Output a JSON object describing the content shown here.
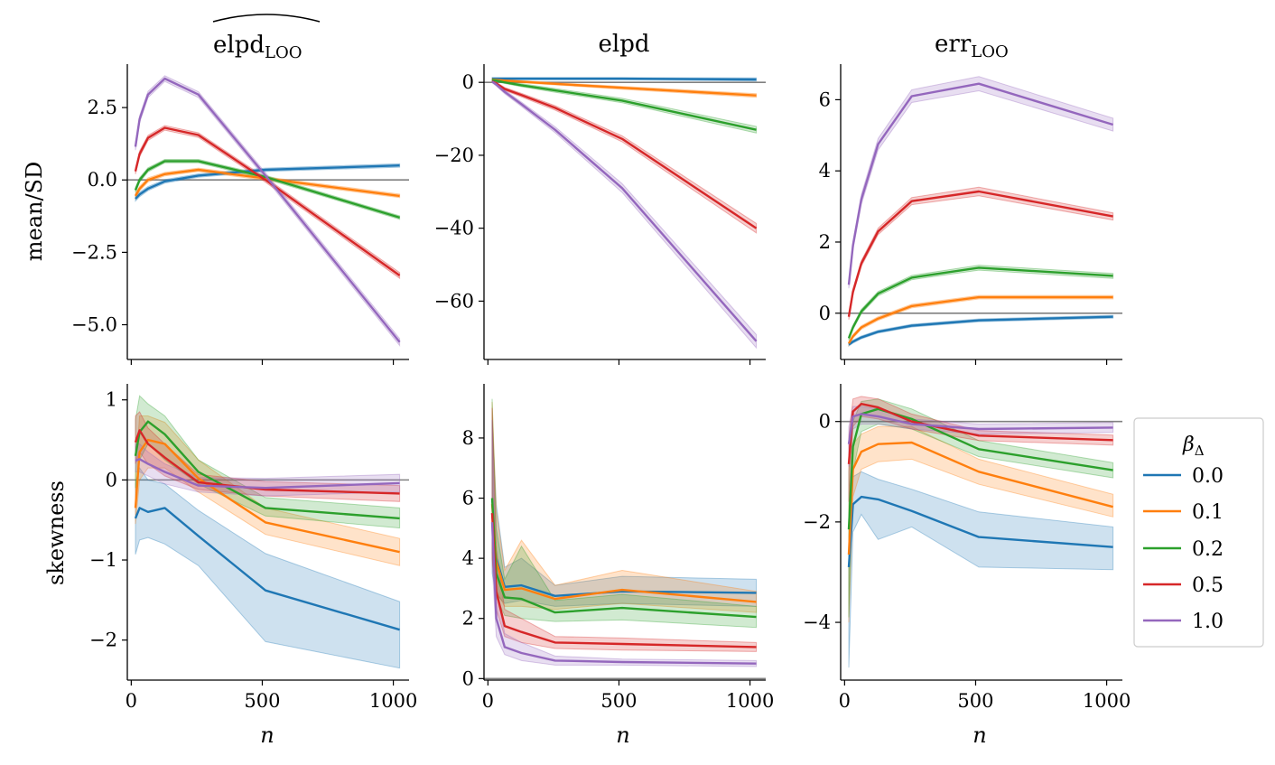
{
  "figure": {
    "row_labels": [
      "mean/SD",
      "skewness"
    ],
    "x_label": "n",
    "panel_titles": [
      {
        "main": "elpd",
        "sub": "LOO",
        "hat": true
      },
      {
        "main": "elpd",
        "sub": "",
        "hat": false
      },
      {
        "main": "err",
        "sub": "LOO",
        "hat": false
      }
    ]
  },
  "legend": {
    "title": "β",
    "title_sub": "Δ",
    "entries": [
      {
        "label": "0.0",
        "color": "#1f77b4"
      },
      {
        "label": "0.1",
        "color": "#ff7f0e"
      },
      {
        "label": "0.2",
        "color": "#2ca02c"
      },
      {
        "label": "0.5",
        "color": "#d62728"
      },
      {
        "label": "1.0",
        "color": "#9467bd"
      }
    ]
  },
  "chart_data": [
    {
      "type": "line",
      "title": "elpd_LOO (hat)",
      "ylabel": "mean/SD",
      "xlabel": "",
      "xlim": [
        -15,
        1060
      ],
      "ylim": [
        -6.2,
        4.0
      ],
      "xticks": [
        0,
        500,
        1000
      ],
      "xticklabels": [
        "",
        "",
        ""
      ],
      "yticks": [
        2.5,
        0.0,
        -2.5,
        -5.0
      ],
      "yticklabels": [
        "2.5",
        "0.0",
        "−2.5",
        "−5.0"
      ],
      "hline": 0,
      "x": [
        16,
        32,
        64,
        128,
        256,
        512,
        1024
      ],
      "series": [
        {
          "name": "0.0",
          "values": [
            -0.65,
            -0.5,
            -0.3,
            -0.05,
            0.15,
            0.35,
            0.5
          ],
          "band": [
            0.08,
            0.08,
            0.07,
            0.06,
            0.06,
            0.06,
            0.06
          ]
        },
        {
          "name": "0.1",
          "values": [
            -0.55,
            -0.3,
            0.0,
            0.2,
            0.35,
            0.05,
            -0.55
          ],
          "band": [
            0.08,
            0.08,
            0.07,
            0.06,
            0.06,
            0.06,
            0.06
          ]
        },
        {
          "name": "0.2",
          "values": [
            -0.35,
            0.0,
            0.35,
            0.65,
            0.65,
            0.1,
            -1.3
          ],
          "band": [
            0.08,
            0.08,
            0.07,
            0.06,
            0.06,
            0.06,
            0.06
          ]
        },
        {
          "name": "0.5",
          "values": [
            0.3,
            0.9,
            1.45,
            1.8,
            1.55,
            0.0,
            -3.3
          ],
          "band": [
            0.1,
            0.1,
            0.09,
            0.08,
            0.08,
            0.08,
            0.1
          ]
        },
        {
          "name": "1.0",
          "values": [
            1.15,
            2.1,
            2.95,
            3.5,
            2.95,
            0.15,
            -5.6
          ],
          "band": [
            0.12,
            0.12,
            0.11,
            0.1,
            0.1,
            0.1,
            0.12
          ]
        }
      ]
    },
    {
      "type": "line",
      "title": "elpd",
      "ylabel": "",
      "xlabel": "",
      "xlim": [
        -15,
        1060
      ],
      "ylim": [
        -76,
        5
      ],
      "xticks": [
        0,
        500,
        1000
      ],
      "xticklabels": [
        "",
        "",
        ""
      ],
      "yticks": [
        0,
        -20,
        -40,
        -60
      ],
      "yticklabels": [
        "0",
        "−20",
        "−40",
        "−60"
      ],
      "hline": 0,
      "x": [
        16,
        32,
        64,
        128,
        256,
        512,
        1024
      ],
      "series": [
        {
          "name": "0.0",
          "values": [
            1.0,
            1.0,
            1.0,
            1.0,
            1.0,
            1.0,
            0.8
          ],
          "band": [
            0.3,
            0.3,
            0.3,
            0.3,
            0.3,
            0.3,
            0.4
          ]
        },
        {
          "name": "0.1",
          "values": [
            0.8,
            0.7,
            0.5,
            0.2,
            -0.4,
            -1.5,
            -3.6
          ],
          "band": [
            0.3,
            0.3,
            0.3,
            0.3,
            0.3,
            0.4,
            0.5
          ]
        },
        {
          "name": "0.2",
          "values": [
            0.7,
            0.5,
            0.0,
            -0.8,
            -2.2,
            -5.0,
            -13.0
          ],
          "band": [
            0.3,
            0.3,
            0.3,
            0.4,
            0.5,
            0.6,
            0.9
          ]
        },
        {
          "name": "0.5",
          "values": [
            0.3,
            -0.3,
            -1.8,
            -3.5,
            -7.0,
            -15.5,
            -40.0
          ],
          "band": [
            0.3,
            0.3,
            0.4,
            0.5,
            0.6,
            0.8,
            1.3
          ]
        },
        {
          "name": "1.0",
          "values": [
            0.2,
            -0.6,
            -2.6,
            -6.0,
            -13.0,
            -29.0,
            -71.0
          ],
          "band": [
            0.3,
            0.4,
            0.5,
            0.6,
            0.8,
            1.2,
            1.8
          ]
        }
      ]
    },
    {
      "type": "line",
      "title": "err_LOO",
      "ylabel": "",
      "xlabel": "",
      "xlim": [
        -15,
        1060
      ],
      "ylim": [
        -1.3,
        7.0
      ],
      "xticks": [
        0,
        500,
        1000
      ],
      "xticklabels": [
        "",
        "",
        ""
      ],
      "yticks": [
        6,
        4,
        2,
        0
      ],
      "yticklabels": [
        "6",
        "4",
        "2",
        "0"
      ],
      "hline": 0,
      "x": [
        16,
        32,
        64,
        128,
        256,
        512,
        1024
      ],
      "series": [
        {
          "name": "0.0",
          "values": [
            -0.88,
            -0.8,
            -0.68,
            -0.52,
            -0.35,
            -0.2,
            -0.1
          ],
          "band": [
            0.04,
            0.04,
            0.04,
            0.04,
            0.04,
            0.04,
            0.04
          ]
        },
        {
          "name": "0.1",
          "values": [
            -0.85,
            -0.65,
            -0.4,
            -0.15,
            0.2,
            0.45,
            0.45
          ],
          "band": [
            0.05,
            0.05,
            0.05,
            0.05,
            0.05,
            0.05,
            0.05
          ]
        },
        {
          "name": "0.2",
          "values": [
            -0.7,
            -0.4,
            0.05,
            0.55,
            1.0,
            1.28,
            1.05
          ],
          "band": [
            0.06,
            0.06,
            0.06,
            0.06,
            0.06,
            0.07,
            0.07
          ]
        },
        {
          "name": "0.5",
          "values": [
            -0.1,
            0.6,
            1.4,
            2.3,
            3.15,
            3.42,
            2.72
          ],
          "band": [
            0.08,
            0.08,
            0.08,
            0.09,
            0.1,
            0.12,
            0.1
          ]
        },
        {
          "name": "1.0",
          "values": [
            0.8,
            1.9,
            3.2,
            4.75,
            6.1,
            6.45,
            5.3
          ],
          "band": [
            0.1,
            0.12,
            0.14,
            0.16,
            0.18,
            0.2,
            0.18
          ]
        }
      ]
    },
    {
      "type": "line",
      "title": "",
      "ylabel": "skewness",
      "xlabel": "n",
      "xlim": [
        -15,
        1060
      ],
      "ylim": [
        -2.5,
        1.2
      ],
      "xticks": [
        0,
        500,
        1000
      ],
      "xticklabels": [
        "0",
        "500",
        "1000"
      ],
      "yticks": [
        1,
        0,
        -1,
        -2
      ],
      "yticklabels": [
        "1",
        "0",
        "−1",
        "−2"
      ],
      "hline": 0,
      "x": [
        16,
        32,
        64,
        128,
        256,
        512,
        1024
      ],
      "series": [
        {
          "name": "0.0",
          "values": [
            -0.48,
            -0.35,
            -0.4,
            -0.35,
            -0.7,
            -1.38,
            -1.87
          ],
          "lower": [
            -0.93,
            -0.75,
            -0.72,
            -0.8,
            -1.07,
            -2.02,
            -2.35
          ],
          "upper": [
            -0.05,
            0.15,
            0.0,
            -0.05,
            -0.38,
            -0.92,
            -1.52
          ]
        },
        {
          "name": "0.1",
          "values": [
            -0.35,
            0.35,
            0.5,
            0.45,
            0.02,
            -0.53,
            -0.9
          ],
          "lower": [
            -0.55,
            0.0,
            0.15,
            0.15,
            -0.15,
            -0.68,
            -1.07
          ],
          "upper": [
            0.05,
            0.8,
            0.8,
            0.72,
            0.25,
            -0.35,
            -0.73
          ]
        },
        {
          "name": "0.2",
          "values": [
            0.3,
            0.6,
            0.73,
            0.57,
            0.1,
            -0.35,
            -0.48
          ],
          "lower": [
            -0.1,
            0.25,
            0.45,
            0.25,
            -0.05,
            -0.45,
            -0.6
          ],
          "upper": [
            0.75,
            1.05,
            0.95,
            0.8,
            0.25,
            -0.22,
            -0.35
          ]
        },
        {
          "name": "0.5",
          "values": [
            0.47,
            0.62,
            0.45,
            0.28,
            -0.03,
            -0.12,
            -0.17
          ],
          "lower": [
            0.2,
            0.35,
            0.2,
            0.05,
            -0.12,
            -0.2,
            -0.27
          ],
          "upper": [
            0.8,
            0.85,
            0.65,
            0.45,
            0.07,
            -0.02,
            -0.07
          ]
        },
        {
          "name": "1.0",
          "values": [
            0.24,
            0.26,
            0.2,
            0.1,
            -0.07,
            -0.1,
            -0.04
          ],
          "lower": [
            0.1,
            0.1,
            0.05,
            -0.05,
            -0.15,
            -0.2,
            -0.15
          ],
          "upper": [
            0.45,
            0.45,
            0.35,
            0.2,
            0.03,
            0.02,
            0.07
          ]
        }
      ]
    },
    {
      "type": "line",
      "title": "",
      "ylabel": "",
      "xlabel": "n",
      "xlim": [
        -15,
        1060
      ],
      "ylim": [
        -0.05,
        9.8
      ],
      "xticks": [
        0,
        500,
        1000
      ],
      "xticklabels": [
        "0",
        "500",
        "1000"
      ],
      "yticks": [
        8,
        6,
        4,
        2,
        0
      ],
      "yticklabels": [
        "8",
        "6",
        "4",
        "2",
        "0"
      ],
      "hline": 0,
      "x": [
        16,
        32,
        64,
        128,
        256,
        512,
        1024
      ],
      "series": [
        {
          "name": "0.0",
          "values": [
            5.5,
            4.0,
            3.05,
            3.1,
            2.75,
            2.9,
            2.85
          ],
          "lower": [
            3.5,
            2.8,
            2.5,
            2.6,
            2.4,
            2.5,
            2.4
          ],
          "upper": [
            8.6,
            5.8,
            3.7,
            4.0,
            3.1,
            3.4,
            3.3
          ]
        },
        {
          "name": "0.1",
          "values": [
            5.8,
            3.9,
            2.95,
            3.0,
            2.65,
            2.95,
            2.55
          ],
          "lower": [
            4.0,
            2.9,
            2.4,
            2.4,
            2.3,
            2.5,
            2.2
          ],
          "upper": [
            9.2,
            5.6,
            3.6,
            4.6,
            3.1,
            3.6,
            2.9
          ]
        },
        {
          "name": "0.2",
          "values": [
            6.0,
            3.5,
            2.7,
            2.65,
            2.2,
            2.35,
            2.05
          ],
          "lower": [
            4.2,
            2.7,
            2.1,
            2.0,
            1.9,
            1.95,
            1.7
          ],
          "upper": [
            9.3,
            5.0,
            3.3,
            4.4,
            2.6,
            2.8,
            2.4
          ]
        },
        {
          "name": "0.5",
          "values": [
            5.5,
            2.9,
            1.75,
            1.55,
            1.2,
            1.15,
            1.05
          ],
          "lower": [
            4.0,
            2.3,
            1.4,
            1.2,
            1.0,
            0.95,
            0.9
          ],
          "upper": [
            9.0,
            4.3,
            2.3,
            2.0,
            1.4,
            1.35,
            1.2
          ]
        },
        {
          "name": "1.0",
          "values": [
            5.2,
            2.0,
            1.05,
            0.85,
            0.6,
            0.55,
            0.5
          ],
          "lower": [
            3.8,
            1.4,
            0.8,
            0.6,
            0.45,
            0.45,
            0.4
          ],
          "upper": [
            8.6,
            3.0,
            1.5,
            1.2,
            0.75,
            0.65,
            0.6
          ]
        }
      ]
    },
    {
      "type": "line",
      "title": "",
      "ylabel": "",
      "xlabel": "n",
      "xlim": [
        -15,
        1060
      ],
      "ylim": [
        -5.15,
        0.75
      ],
      "xticks": [
        0,
        500,
        1000
      ],
      "xticklabels": [
        "0",
        "500",
        "1000"
      ],
      "yticks": [
        0,
        -2,
        -4
      ],
      "yticklabels": [
        "0",
        "−2",
        "−4"
      ],
      "hline": 0,
      "x": [
        16,
        32,
        64,
        128,
        256,
        512,
        1024
      ],
      "series": [
        {
          "name": "0.0",
          "values": [
            -2.9,
            -1.65,
            -1.5,
            -1.55,
            -1.78,
            -2.3,
            -2.5
          ],
          "lower": [
            -4.9,
            -2.2,
            -1.85,
            -2.35,
            -2.1,
            -2.9,
            -2.95
          ],
          "upper": [
            -2.3,
            -1.1,
            -1.0,
            -1.15,
            -1.35,
            -1.8,
            -2.1
          ]
        },
        {
          "name": "0.1",
          "values": [
            -2.65,
            -0.95,
            -0.6,
            -0.45,
            -0.42,
            -1.0,
            -1.7
          ],
          "lower": [
            -4.0,
            -1.5,
            -0.95,
            -0.8,
            -0.75,
            -1.25,
            -1.9
          ],
          "upper": [
            -1.7,
            -0.45,
            -0.25,
            -0.1,
            -0.1,
            -0.75,
            -1.45
          ]
        },
        {
          "name": "0.2",
          "values": [
            -2.15,
            -0.5,
            0.15,
            0.25,
            0.05,
            -0.55,
            -0.97
          ],
          "lower": [
            -3.9,
            -1.0,
            -0.2,
            -0.05,
            -0.15,
            -0.7,
            -1.12
          ],
          "upper": [
            -1.0,
            0.0,
            0.4,
            0.45,
            0.25,
            -0.38,
            -0.82
          ]
        },
        {
          "name": "0.5",
          "values": [
            -0.85,
            0.2,
            0.35,
            0.28,
            0.0,
            -0.28,
            -0.37
          ],
          "lower": [
            -1.6,
            -0.1,
            0.1,
            0.05,
            -0.15,
            -0.38,
            -0.47
          ],
          "upper": [
            -0.3,
            0.45,
            0.5,
            0.45,
            0.15,
            -0.18,
            -0.27
          ]
        },
        {
          "name": "1.0",
          "values": [
            -0.45,
            0.1,
            0.15,
            0.1,
            -0.05,
            -0.15,
            -0.12
          ],
          "lower": [
            -0.9,
            -0.15,
            -0.05,
            -0.05,
            -0.15,
            -0.25,
            -0.22
          ],
          "upper": [
            -0.1,
            0.3,
            0.3,
            0.25,
            0.05,
            -0.05,
            -0.02
          ]
        }
      ]
    }
  ]
}
